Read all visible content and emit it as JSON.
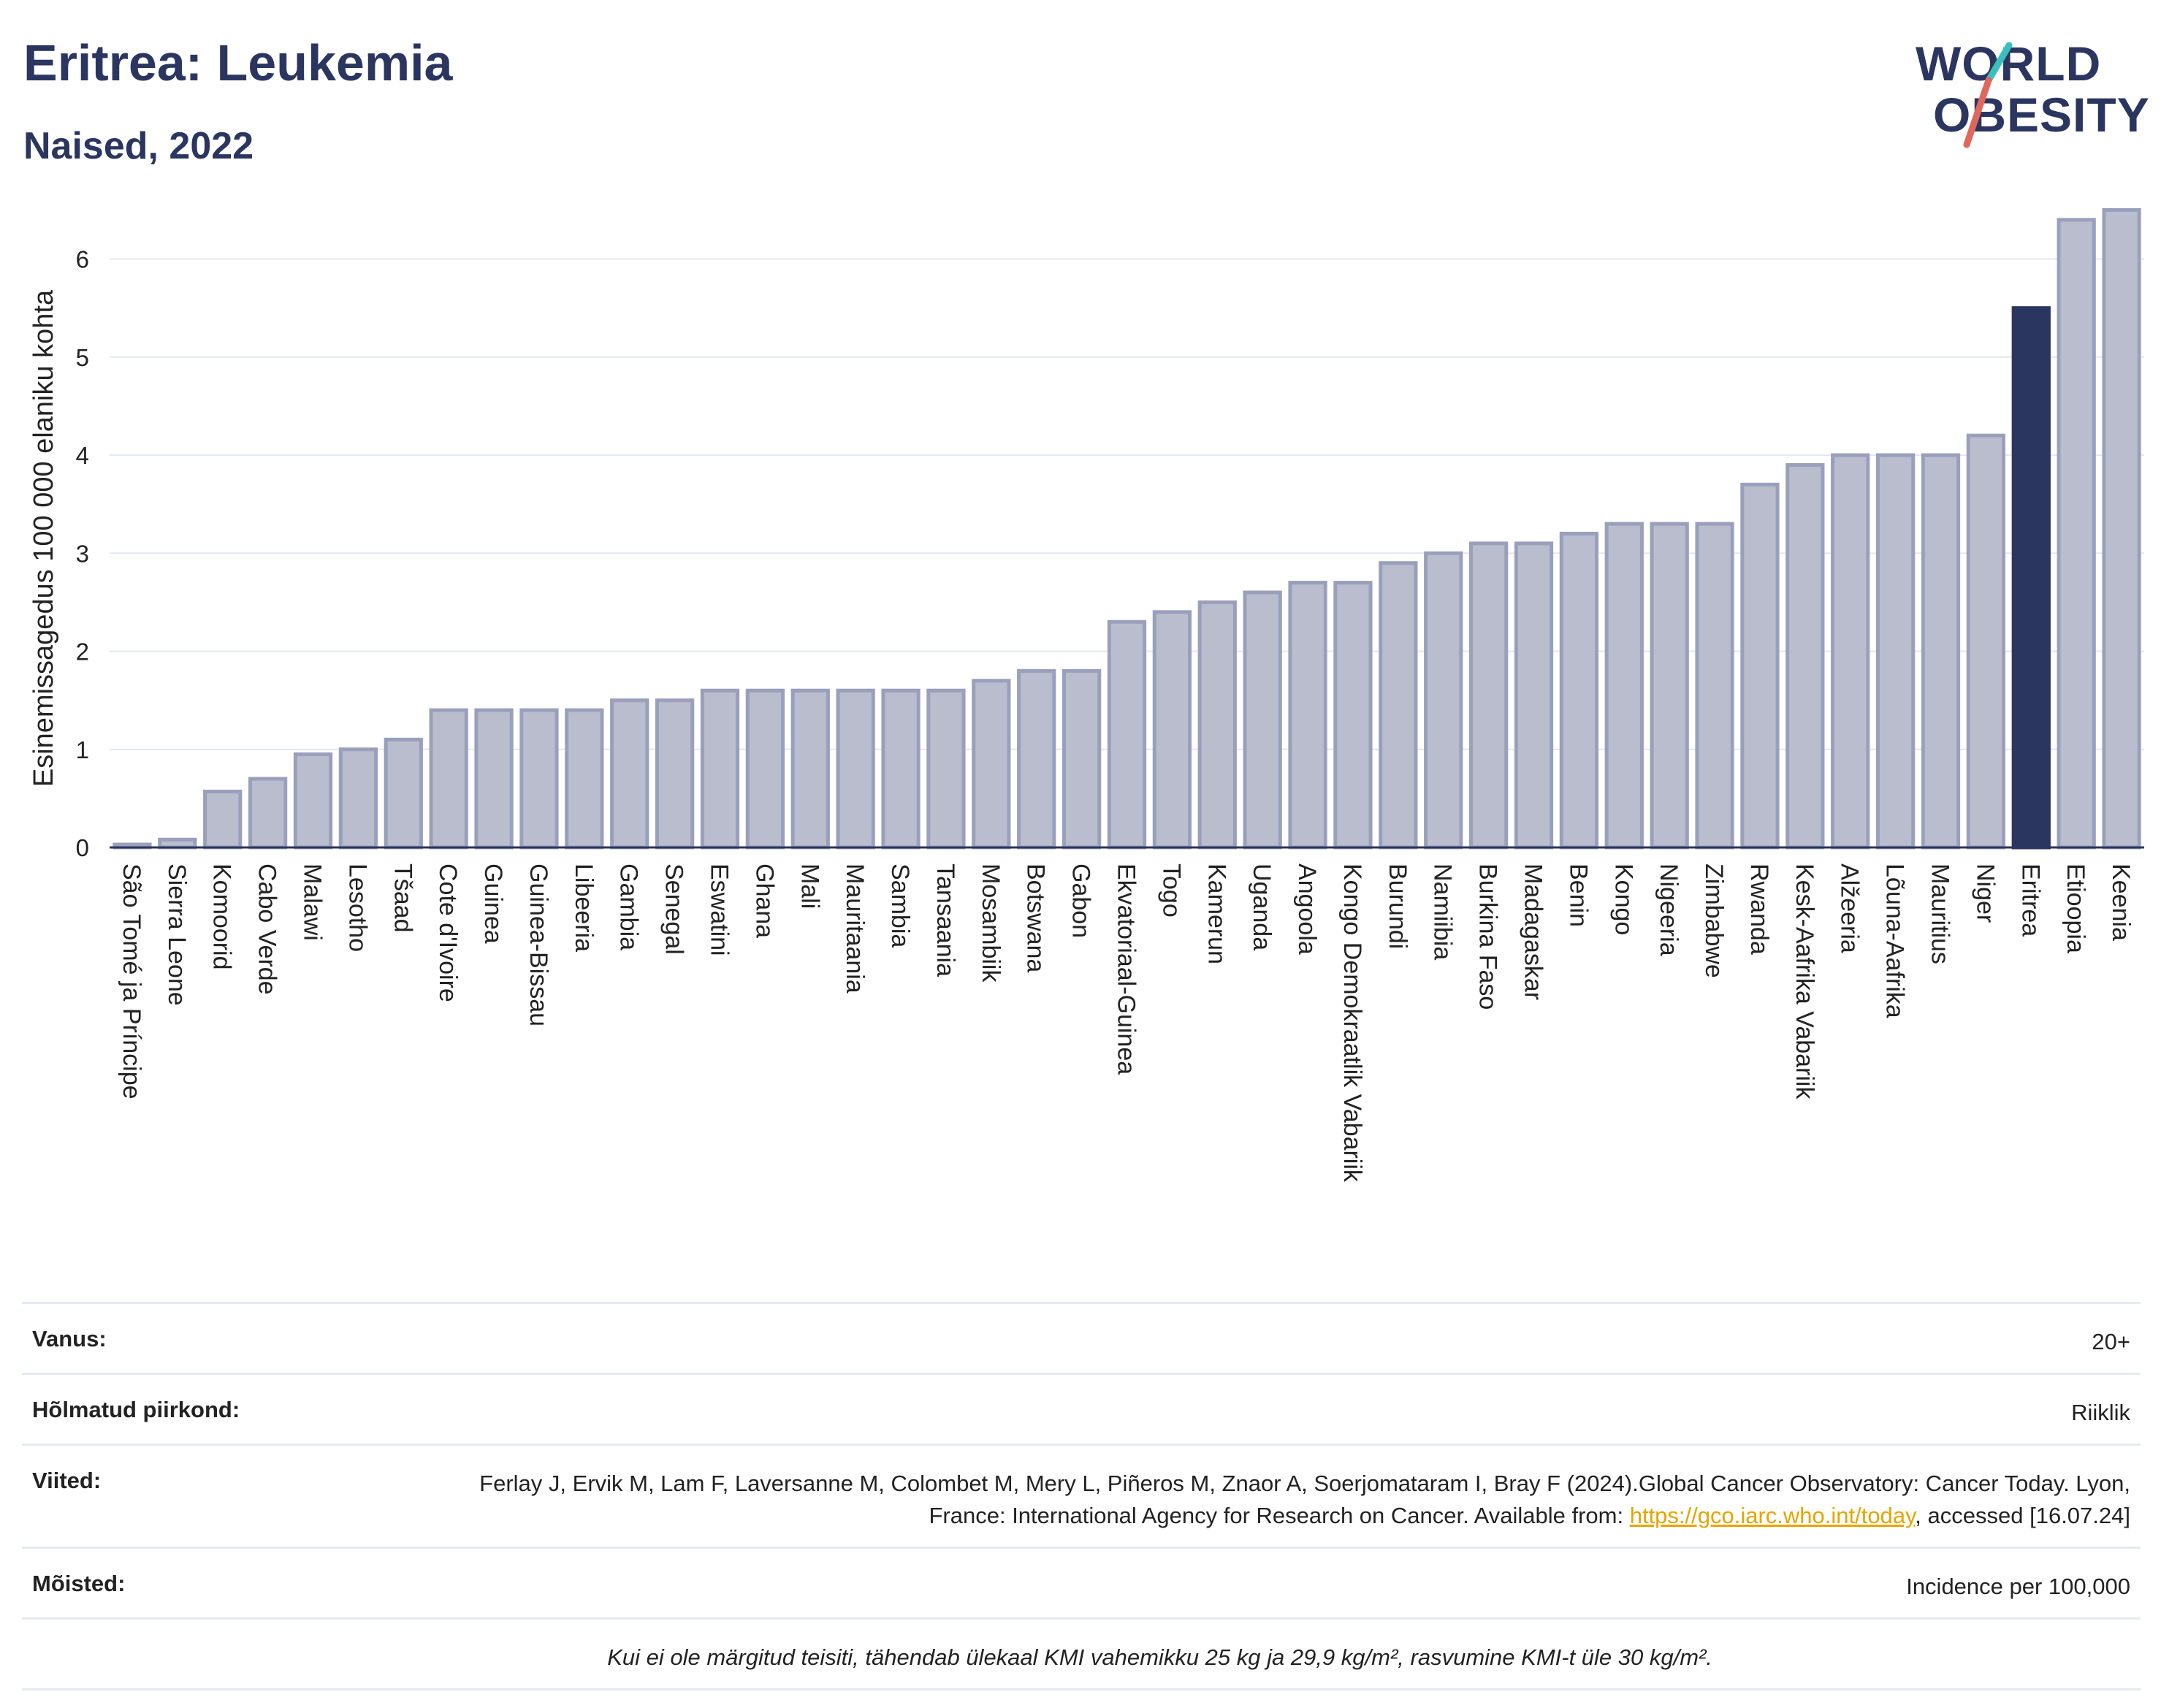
{
  "title": "Eritrea: Leukemia",
  "subtitle": "Naised, 2022",
  "logo": {
    "line1": "WORLD",
    "line2": "OBESITY",
    "accent_teal": "#3bbfbd",
    "accent_red": "#e0675c"
  },
  "colors": {
    "bar": "#b9bdcd",
    "bar_stroke": "#9aa0bb",
    "highlight": "#2b3660",
    "axis": "#2b3660",
    "grid": "#e4e7ef"
  },
  "chart_data": {
    "type": "bar",
    "ylabel": "Esinemissagedus 100 000 elaniku kohta",
    "ylim": [
      0,
      6.6
    ],
    "yticks": [
      0,
      1,
      2,
      3,
      4,
      5,
      6
    ],
    "grid": true,
    "highlight": "Eritrea",
    "categories": [
      "São Tomé ja Príncipe",
      "Sierra Leone",
      "Komoorid",
      "Cabo Verde",
      "Malawi",
      "Lesotho",
      "Tšaad",
      "Cote d'Ivoire",
      "Guinea",
      "Guinea-Bissau",
      "Libeeria",
      "Gambia",
      "Senegal",
      "Eswatini",
      "Ghana",
      "Mali",
      "Mauritaania",
      "Sambia",
      "Tansaania",
      "Mosambiik",
      "Botswana",
      "Gabon",
      "Ekvatoriaal-Guinea",
      "Togo",
      "Kamerun",
      "Uganda",
      "Angoola",
      "Kongo Demokraatlik Vabariik",
      "Burundi",
      "Namiibia",
      "Burkina Faso",
      "Madagaskar",
      "Benin",
      "Kongo",
      "Nigeeria",
      "Zimbabwe",
      "Rwanda",
      "Kesk-Aafrika Vabariik",
      "Alžeeria",
      "Lõuna-Aafrika",
      "Mauritius",
      "Niger",
      "Eritrea",
      "Etioopia",
      "Keenia"
    ],
    "values": [
      0.03,
      0.08,
      0.57,
      0.7,
      0.95,
      1.0,
      1.1,
      1.4,
      1.4,
      1.4,
      1.4,
      1.5,
      1.5,
      1.6,
      1.6,
      1.6,
      1.6,
      1.6,
      1.6,
      1.7,
      1.8,
      1.8,
      2.3,
      2.4,
      2.5,
      2.6,
      2.7,
      2.7,
      2.9,
      3.0,
      3.1,
      3.1,
      3.2,
      3.3,
      3.3,
      3.3,
      3.7,
      3.9,
      4.0,
      4.0,
      4.0,
      4.2,
      5.5,
      6.4,
      6.5
    ]
  },
  "info": {
    "age_label": "Vanus:",
    "age_value": "20+",
    "region_label": "Hõlmatud piirkond:",
    "region_value": "Riiklik",
    "refs_label": "Viited:",
    "refs_text_1": "Ferlay J, Ervik M, Lam F, Laversanne M, Colombet M, Mery L, Piñeros M, Znaor A, Soerjomataram I, Bray F (2024).Global Cancer Observatory: Cancer Today. Lyon, France: International Agency for Research on Cancer. Available from: ",
    "refs_link": "https://gco.iarc.who.int/today",
    "refs_text_2": ", accessed [16.07.24]",
    "defs_label": "Mõisted:",
    "defs_value": "Incidence per 100,000",
    "note": "Kui ei ole märgitud teisiti, tähendab ülekaal KMI vahemikku 25 kg ja 29,9 kg/m², rasvumine KMI-t üle 30 kg/m²."
  }
}
